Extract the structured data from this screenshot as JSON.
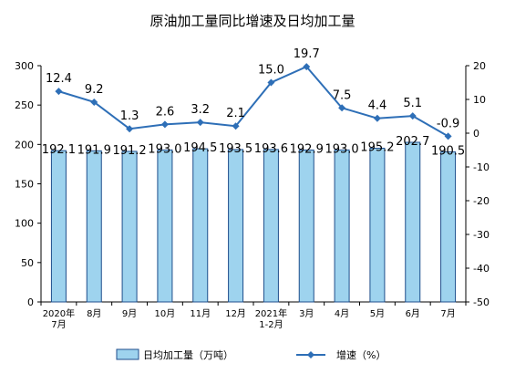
{
  "chart_data": {
    "type": "bar+line",
    "title": "原油加工量同比增速及日均加工量",
    "categories": [
      [
        "2020年",
        "7月"
      ],
      [
        "8月"
      ],
      [
        "9月"
      ],
      [
        "10月"
      ],
      [
        "11月"
      ],
      [
        "12月"
      ],
      [
        "2021年",
        "1-2月"
      ],
      [
        "3月"
      ],
      [
        "4月"
      ],
      [
        "5月"
      ],
      [
        "6月"
      ],
      [
        "7月"
      ]
    ],
    "series": [
      {
        "name": "日均加工量（万吨）",
        "kind": "bar",
        "axis": "left",
        "values": [
          192.1,
          191.9,
          191.2,
          193.0,
          194.5,
          193.5,
          193.6,
          192.9,
          193.0,
          195.2,
          202.7,
          190.5
        ],
        "labels": [
          "192.1",
          "191.9",
          "191.2",
          "193.0",
          "194.5",
          "193.5",
          "193.6",
          "192.9",
          "193.0",
          "195.2",
          "202.7",
          "190.5"
        ],
        "color": "#9ed3ee",
        "stroke": "#1f4e8c"
      },
      {
        "name": "增速（%）",
        "kind": "line",
        "axis": "right",
        "values": [
          12.4,
          9.2,
          1.3,
          2.6,
          3.2,
          2.1,
          15.0,
          19.7,
          7.5,
          4.4,
          5.1,
          -0.9
        ],
        "labels": [
          "12.4",
          "9.2",
          "1.3",
          "2.6",
          "3.2",
          "2.1",
          "15.0",
          "19.7",
          "7.5",
          "4.4",
          "5.1",
          "-0.9"
        ],
        "color": "#2e6fb7"
      }
    ],
    "y_left": {
      "range": [
        0,
        300
      ],
      "ticks": [
        "0",
        "50",
        "100",
        "150",
        "200",
        "250",
        "300"
      ]
    },
    "y_right": {
      "range": [
        -50,
        20
      ],
      "ticks": [
        "20",
        "10",
        "0",
        "-10",
        "-20",
        "-30",
        "-40",
        "-50"
      ]
    },
    "legend": {
      "placement": "bottom",
      "bar_label": "日均加工量（万吨）",
      "line_label": "增速（%）"
    },
    "grid": false
  }
}
